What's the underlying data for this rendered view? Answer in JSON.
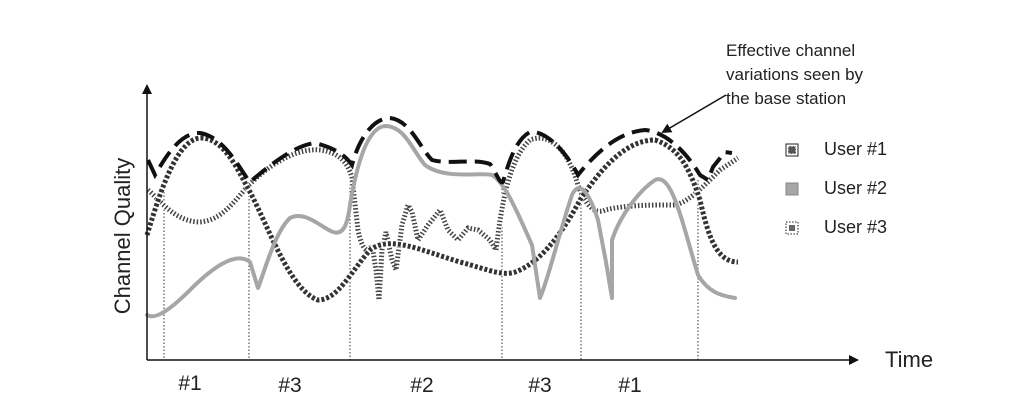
{
  "diagram": {
    "y_axis_label": "Channel Quality",
    "x_axis_label": "Time",
    "annotation": {
      "lines": [
        "Effective channel",
        "variations seen by",
        "the base station"
      ]
    },
    "legend": [
      {
        "label": "User #1",
        "pattern": "checker-diagonal"
      },
      {
        "label": "User #2",
        "pattern": "solid-gray"
      },
      {
        "label": "User #3",
        "pattern": "checker-dotted"
      }
    ],
    "slot_labels": [
      "#1",
      "#3",
      "#2",
      "#3",
      "#1"
    ],
    "colors": {
      "envelope": "#111111",
      "user2": "#a6a6a6",
      "user1": "#333333",
      "user3": "#555555"
    }
  }
}
